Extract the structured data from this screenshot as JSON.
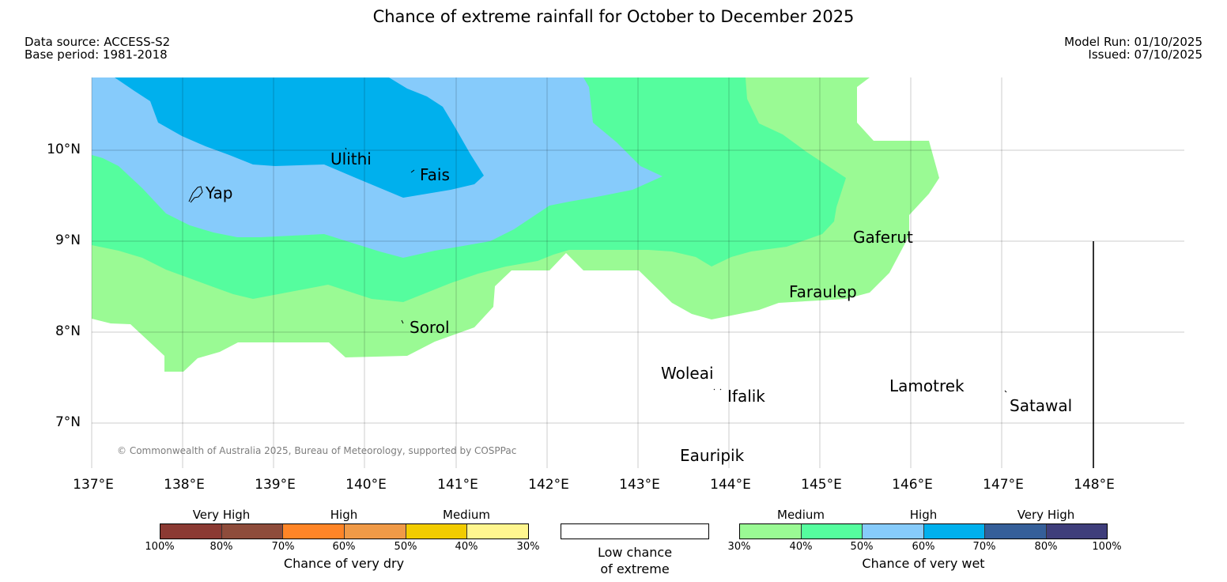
{
  "title": "Chance of extreme rainfall for October to December 2025",
  "meta": {
    "data_source": "Data source: ACCESS-S2",
    "base_period": "Base period: 1981-2018",
    "model_run": "Model Run: 01/10/2025",
    "issued": "Issued: 07/10/2025"
  },
  "map": {
    "lat_ticks": [
      "10°N",
      "9°N",
      "8°N",
      "7°N"
    ],
    "lon_ticks": [
      "137°E",
      "138°E",
      "139°E",
      "140°E",
      "141°E",
      "142°E",
      "143°E",
      "144°E",
      "145°E",
      "146°E",
      "147°E",
      "148°E"
    ],
    "places": {
      "yap": "Yap",
      "ulithi": "Ulithi",
      "fais": "Fais",
      "gaferut": "Gaferut",
      "faraulep": "Faraulep",
      "sorol": "Sorol",
      "woleai": "Woleai",
      "ifalik": "Ifalik",
      "lamotrek": "Lamotrek",
      "satawal": "Satawal",
      "eauripik": "Eauripik"
    },
    "copyright": "© Commonwealth of Australia 2025, Bureau of Meteorology, supported by COSPPac"
  },
  "legend": {
    "dry": {
      "categories": [
        "Very High",
        "High",
        "Medium"
      ],
      "colors": [
        "#8b3a33",
        "#8e4c3b",
        "#ff8527",
        "#f09a47",
        "#f2cc00",
        "#fff68f"
      ],
      "ticks": [
        "100%",
        "80%",
        "70%",
        "60%",
        "50%",
        "40%",
        "30%"
      ],
      "caption": "Chance of very dry"
    },
    "low": {
      "line1": "Low chance",
      "line2": "of extreme",
      "color": "#ffffff"
    },
    "wet": {
      "categories": [
        "Medium",
        "High",
        "Very High"
      ],
      "colors": [
        "#9afa94",
        "#55fd9e",
        "#86cbfb",
        "#00b0ed",
        "#355f99",
        "#3f3e7b"
      ],
      "ticks": [
        "30%",
        "40%",
        "50%",
        "60%",
        "70%",
        "80%",
        "100%"
      ],
      "caption": "Chance of very wet"
    }
  }
}
